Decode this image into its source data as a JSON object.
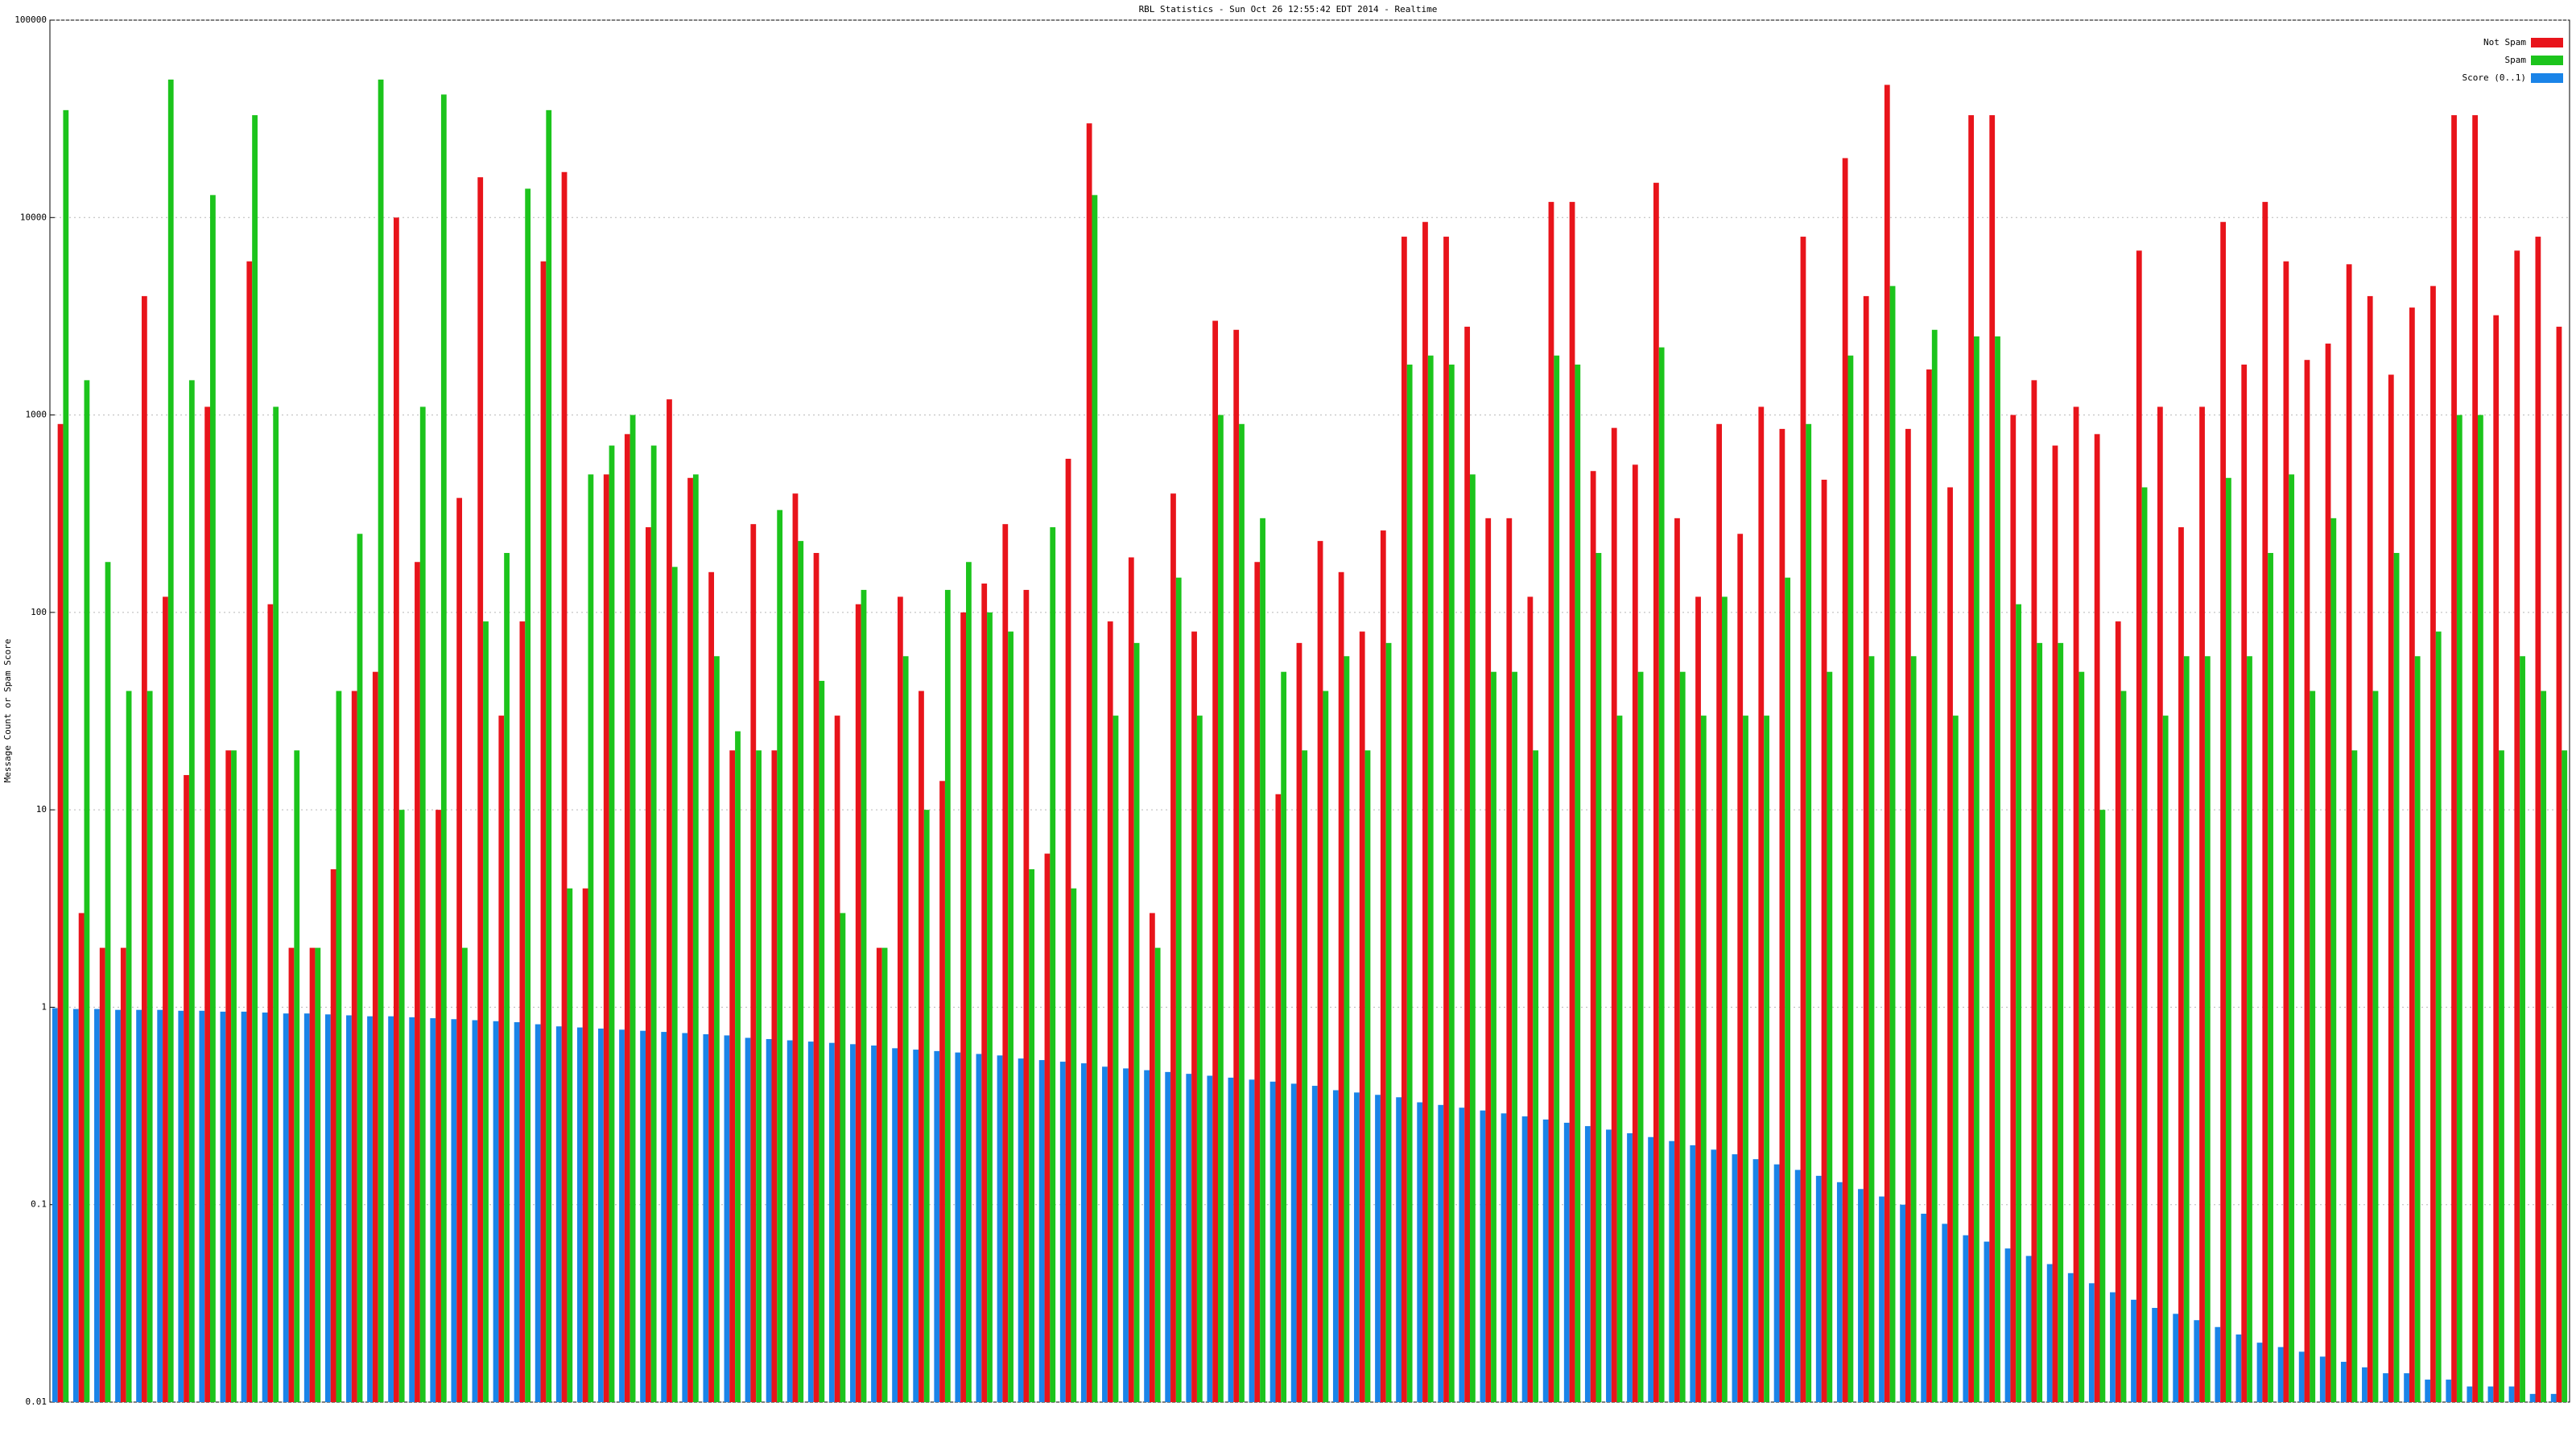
{
  "chart_data": {
    "type": "bar",
    "title": "RBL Statistics - Sun Oct 26 12:55:42 EDT 2014 - Realtime",
    "y_label": "Message Count or Spam Score",
    "log_scale": true,
    "grid": true,
    "legend": "top-right",
    "ylim": [
      0.01,
      100000
    ],
    "yticks": [
      0.01,
      0.1,
      1,
      10,
      100,
      1000,
      10000,
      100000
    ],
    "series": [
      {
        "name": "Not Spam",
        "color": "#e8141b",
        "values": [
          900,
          3,
          2,
          2,
          4000,
          120,
          15,
          1100,
          20,
          6000,
          110,
          2,
          2,
          5,
          40,
          50,
          10000,
          180,
          10,
          380,
          16000,
          30,
          90,
          6000,
          17000,
          4,
          500,
          800,
          270,
          1200,
          480,
          160,
          20,
          280,
          20,
          400,
          200,
          30,
          110,
          2,
          120,
          40,
          14,
          100,
          140,
          280,
          130,
          6,
          600,
          30000,
          90,
          190,
          3,
          400,
          80,
          3000,
          2700,
          180,
          12,
          70,
          230,
          160,
          80,
          260,
          8000,
          9500,
          8000,
          2800,
          300,
          300,
          120,
          12000,
          12000,
          520,
          860,
          560,
          15000,
          300,
          120,
          900,
          250,
          1100,
          850,
          8000,
          470,
          20000,
          4000,
          47000,
          850,
          1700,
          430,
          33000,
          33000,
          1000,
          1500,
          700,
          1100,
          800,
          90,
          6800,
          1100,
          270,
          1100,
          9500,
          1800,
          12000,
          6000,
          1900,
          2300,
          5800,
          4000,
          1600,
          3500,
          4500,
          33000,
          33000,
          3200,
          6800,
          8000,
          2800
        ]
      },
      {
        "name": "Spam",
        "color": "#1cc41c",
        "values": [
          35000,
          1500,
          180,
          40,
          40,
          50000,
          1500,
          13000,
          20,
          33000,
          1100,
          20,
          2,
          40,
          250,
          50000,
          10,
          1100,
          42000,
          2,
          90,
          200,
          14000,
          35000,
          4,
          500,
          700,
          1000,
          700,
          170,
          500,
          60,
          25,
          20,
          330,
          230,
          45,
          3,
          130,
          2,
          60,
          10,
          130,
          180,
          100,
          80,
          5,
          270,
          4,
          13000,
          30,
          70,
          2,
          150,
          30,
          1000,
          900,
          300,
          50,
          20,
          40,
          60,
          20,
          70,
          1800,
          2000,
          1800,
          500,
          50,
          50,
          20,
          2000,
          1800,
          200,
          30,
          50,
          2200,
          50,
          30,
          120,
          30,
          30,
          150,
          900,
          50,
          2000,
          60,
          4500,
          60,
          2700,
          30,
          2500,
          2500,
          110,
          70,
          70,
          50,
          10,
          40,
          430,
          30,
          60,
          60,
          480,
          60,
          200,
          500,
          40,
          300,
          20,
          40,
          200,
          60,
          80,
          1000,
          1000,
          20,
          60,
          40,
          20
        ]
      },
      {
        "name": "Score (0..1)",
        "color": "#1a84e8",
        "values": [
          0.99,
          0.98,
          0.98,
          0.97,
          0.97,
          0.97,
          0.96,
          0.96,
          0.95,
          0.95,
          0.94,
          0.93,
          0.93,
          0.92,
          0.91,
          0.9,
          0.9,
          0.89,
          0.88,
          0.87,
          0.86,
          0.85,
          0.84,
          0.82,
          0.8,
          0.79,
          0.78,
          0.77,
          0.76,
          0.75,
          0.74,
          0.73,
          0.72,
          0.7,
          0.69,
          0.68,
          0.67,
          0.66,
          0.65,
          0.64,
          0.62,
          0.61,
          0.6,
          0.59,
          0.58,
          0.57,
          0.55,
          0.54,
          0.53,
          0.52,
          0.5,
          0.49,
          0.48,
          0.47,
          0.46,
          0.45,
          0.44,
          0.43,
          0.42,
          0.41,
          0.4,
          0.38,
          0.37,
          0.36,
          0.35,
          0.33,
          0.32,
          0.31,
          0.3,
          0.29,
          0.28,
          0.27,
          0.26,
          0.25,
          0.24,
          0.23,
          0.22,
          0.21,
          0.2,
          0.19,
          0.18,
          0.17,
          0.16,
          0.15,
          0.14,
          0.13,
          0.12,
          0.11,
          0.1,
          0.09,
          0.08,
          0.07,
          0.065,
          0.06,
          0.055,
          0.05,
          0.045,
          0.04,
          0.036,
          0.033,
          0.03,
          0.028,
          0.026,
          0.024,
          0.022,
          0.02,
          0.019,
          0.018,
          0.017,
          0.016,
          0.015,
          0.014,
          0.014,
          0.013,
          0.013,
          0.012,
          0.012,
          0.012,
          0.011,
          0.011
        ]
      }
    ]
  }
}
